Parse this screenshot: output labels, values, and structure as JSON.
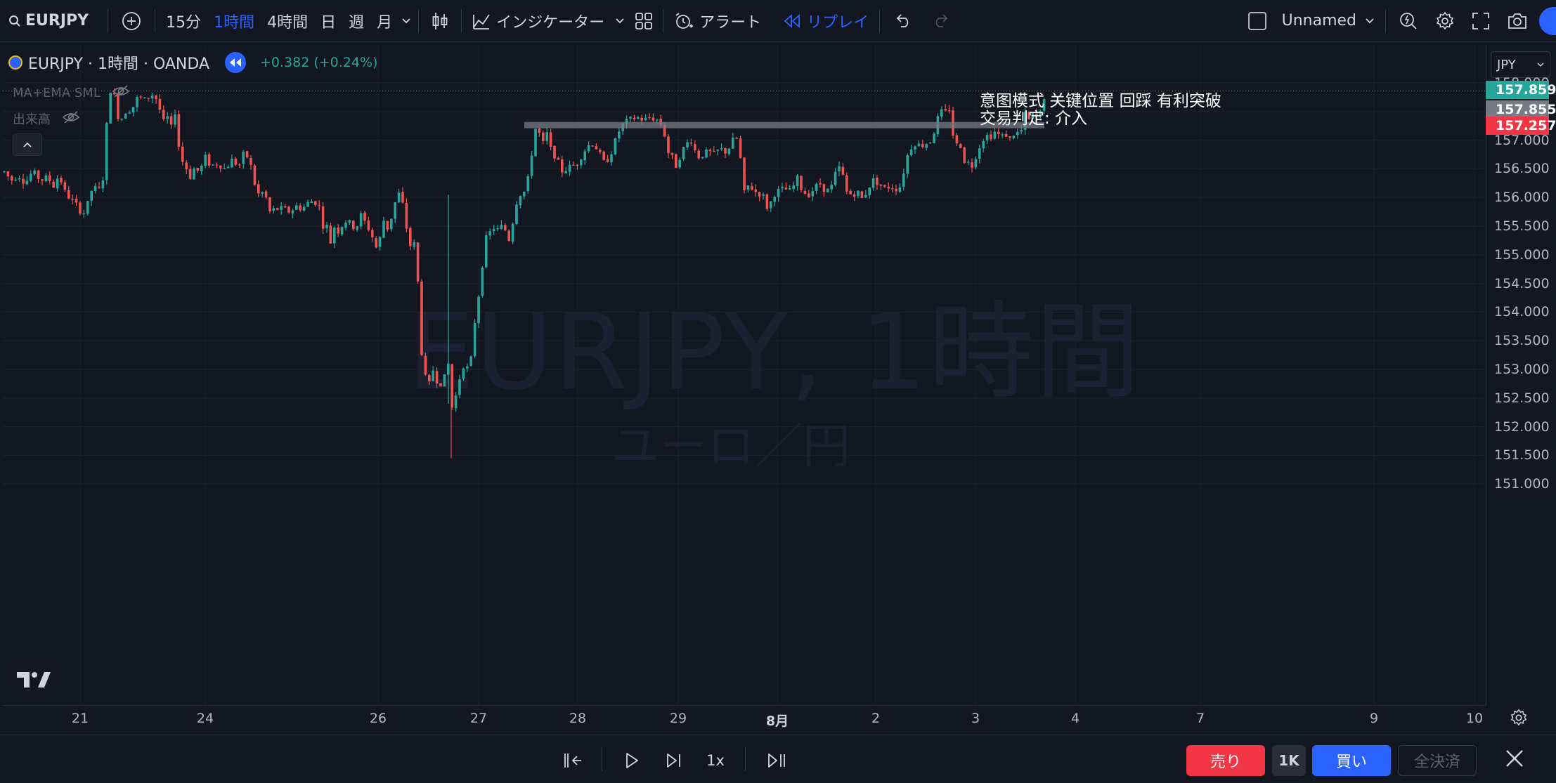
{
  "toolbar": {
    "symbol": "EURJPY",
    "intervals": [
      "15分",
      "1時間",
      "4時間",
      "日",
      "週",
      "月"
    ],
    "active_interval": "1時間",
    "indicators_label": "インジケーター",
    "alert_label": "アラート",
    "replay_label": "リプレイ",
    "layout_name": "Unnamed"
  },
  "legend": {
    "title": "EURJPY · 1時間 · OANDA",
    "change": "+0.382 (+0.24%)",
    "indicator1": "MA+EMA SML",
    "indicator2": "出来高"
  },
  "annotation": {
    "line1": "意图模式 关键位置 回踩 有利突破",
    "line2": "交易判定: 介入"
  },
  "watermark": {
    "main": "EURJPY, 1時間",
    "sub": "ユーロ／円"
  },
  "price_scale": {
    "currency": "JPY",
    "ticks": [
      "158.000",
      "157.500",
      "157.000",
      "156.500",
      "156.000",
      "155.500",
      "155.000",
      "154.500",
      "154.000",
      "153.500",
      "153.000",
      "152.500",
      "152.000",
      "151.500",
      "151.000"
    ],
    "tag_last": "157.859",
    "tag_bid": "157.855",
    "tag_level": "157.257"
  },
  "time_axis": [
    "21",
    "24",
    "26",
    "27",
    "28",
    "29",
    "8月",
    "2",
    "3",
    "4",
    "7",
    "9",
    "10"
  ],
  "replay": {
    "speed": "1x"
  },
  "trade": {
    "sell": "売り",
    "qty": "1K",
    "buy": "買い",
    "flatten": "全決済"
  },
  "colors": {
    "up": "#26a69a",
    "down": "#ef5350",
    "accent": "#2962ff",
    "level_line": "#787b86",
    "background": "#131722"
  },
  "chart_data": {
    "type": "candlestick",
    "symbol": "EURJPY",
    "interval": "1時間",
    "ylim": [
      150.8,
      158.4
    ],
    "key_level": 157.257,
    "last_price": 157.859,
    "path": [
      [
        0,
        156.45
      ],
      [
        10,
        156.3
      ],
      [
        20,
        156.4
      ],
      [
        30,
        156.25
      ],
      [
        40,
        156.45
      ],
      [
        52,
        156.3
      ],
      [
        62,
        156.35
      ],
      [
        70,
        156.2
      ],
      [
        78,
        156.4
      ],
      [
        86,
        156.1
      ],
      [
        96,
        155.95
      ],
      [
        104,
        155.85
      ],
      [
        112,
        155.7
      ],
      [
        118,
        155.85
      ],
      [
        126,
        156.2
      ],
      [
        134,
        156.1
      ],
      [
        142,
        156.4
      ],
      [
        146,
        157.3
      ],
      [
        150,
        157.9
      ],
      [
        156,
        157.8
      ],
      [
        164,
        157.3
      ],
      [
        172,
        157.5
      ],
      [
        182,
        157.55
      ],
      [
        190,
        157.75
      ],
      [
        200,
        157.7
      ],
      [
        210,
        157.8
      ],
      [
        218,
        157.7
      ],
      [
        226,
        157.3
      ],
      [
        232,
        157.4
      ],
      [
        238,
        157.2
      ],
      [
        242,
        157.6
      ],
      [
        246,
        157.2
      ],
      [
        250,
        156.7
      ],
      [
        258,
        156.55
      ],
      [
        264,
        156.35
      ],
      [
        270,
        156.5
      ],
      [
        278,
        156.45
      ],
      [
        286,
        156.7
      ],
      [
        294,
        156.55
      ],
      [
        304,
        156.6
      ],
      [
        314,
        156.5
      ],
      [
        324,
        156.65
      ],
      [
        334,
        156.55
      ],
      [
        342,
        156.8
      ],
      [
        350,
        156.6
      ],
      [
        356,
        156.25
      ],
      [
        362,
        156.05
      ],
      [
        370,
        156.1
      ],
      [
        378,
        155.75
      ],
      [
        386,
        155.8
      ],
      [
        396,
        155.8
      ],
      [
        406,
        155.75
      ],
      [
        416,
        155.85
      ],
      [
        424,
        155.8
      ],
      [
        432,
        155.9
      ],
      [
        440,
        155.95
      ],
      [
        448,
        155.85
      ],
      [
        452,
        155.5
      ],
      [
        458,
        155.55
      ],
      [
        464,
        155.2
      ],
      [
        470,
        155.5
      ],
      [
        476,
        155.4
      ],
      [
        484,
        155.6
      ],
      [
        492,
        155.55
      ],
      [
        500,
        155.45
      ],
      [
        508,
        155.7
      ],
      [
        516,
        155.5
      ],
      [
        522,
        155.4
      ],
      [
        528,
        155.1
      ],
      [
        534,
        155.25
      ],
      [
        540,
        155.6
      ],
      [
        546,
        155.45
      ],
      [
        552,
        155.7
      ],
      [
        558,
        156.0
      ],
      [
        564,
        156.1
      ],
      [
        568,
        155.8
      ],
      [
        574,
        155.35
      ],
      [
        580,
        155.05
      ],
      [
        586,
        155.3
      ],
      [
        592,
        153.5
      ],
      [
        598,
        152.9
      ],
      [
        604,
        152.7
      ],
      [
        610,
        153.0
      ],
      [
        616,
        152.8
      ],
      [
        624,
        152.75
      ],
      [
        632,
        153.1
      ],
      [
        636,
        152.3
      ],
      [
        642,
        152.5
      ],
      [
        648,
        152.85
      ],
      [
        654,
        153.1
      ],
      [
        660,
        153.0
      ],
      [
        664,
        153.15
      ],
      [
        668,
        153.7
      ],
      [
        674,
        154.2
      ],
      [
        680,
        154.8
      ],
      [
        686,
        155.3
      ],
      [
        692,
        155.4
      ],
      [
        698,
        155.5
      ],
      [
        704,
        155.4
      ],
      [
        710,
        155.55
      ],
      [
        716,
        155.3
      ],
      [
        720,
        155.25
      ],
      [
        726,
        155.8
      ],
      [
        732,
        156.05
      ],
      [
        740,
        156.1
      ],
      [
        746,
        156.35
      ],
      [
        752,
        156.9
      ],
      [
        756,
        157.2
      ],
      [
        762,
        157.1
      ],
      [
        768,
        156.9
      ],
      [
        774,
        157.2
      ],
      [
        778,
        156.8
      ],
      [
        786,
        156.7
      ],
      [
        792,
        156.45
      ],
      [
        800,
        156.5
      ],
      [
        808,
        156.55
      ],
      [
        816,
        156.6
      ],
      [
        822,
        156.75
      ],
      [
        830,
        156.9
      ],
      [
        838,
        156.95
      ],
      [
        846,
        156.8
      ],
      [
        852,
        156.6
      ],
      [
        858,
        156.65
      ],
      [
        864,
        156.8
      ],
      [
        870,
        157.0
      ],
      [
        876,
        157.2
      ],
      [
        882,
        157.3
      ],
      [
        890,
        157.35
      ],
      [
        900,
        157.4
      ],
      [
        910,
        157.35
      ],
      [
        920,
        157.4
      ],
      [
        930,
        157.35
      ],
      [
        938,
        157.2
      ],
      [
        944,
        156.8
      ],
      [
        950,
        156.7
      ],
      [
        956,
        156.55
      ],
      [
        964,
        156.8
      ],
      [
        972,
        156.95
      ],
      [
        978,
        157.0
      ],
      [
        986,
        156.7
      ],
      [
        994,
        156.75
      ],
      [
        1002,
        156.8
      ],
      [
        1010,
        156.75
      ],
      [
        1018,
        156.85
      ],
      [
        1026,
        156.8
      ],
      [
        1034,
        156.9
      ],
      [
        1040,
        157.1
      ],
      [
        1046,
        156.9
      ],
      [
        1052,
        156.05
      ],
      [
        1058,
        156.2
      ],
      [
        1066,
        156.15
      ],
      [
        1072,
        156.05
      ],
      [
        1078,
        156.1
      ],
      [
        1084,
        155.85
      ],
      [
        1088,
        155.8
      ],
      [
        1094,
        156.05
      ],
      [
        1100,
        156.1
      ],
      [
        1110,
        156.15
      ],
      [
        1120,
        156.1
      ],
      [
        1128,
        156.35
      ],
      [
        1136,
        156.1
      ],
      [
        1144,
        156.05
      ],
      [
        1152,
        156.15
      ],
      [
        1160,
        156.25
      ],
      [
        1170,
        156.1
      ],
      [
        1178,
        156.2
      ],
      [
        1186,
        156.55
      ],
      [
        1192,
        156.45
      ],
      [
        1198,
        156.1
      ],
      [
        1206,
        156.05
      ],
      [
        1214,
        156.1
      ],
      [
        1222,
        155.95
      ],
      [
        1228,
        156.15
      ],
      [
        1236,
        156.3
      ],
      [
        1244,
        156.25
      ],
      [
        1252,
        156.15
      ],
      [
        1260,
        156.2
      ],
      [
        1268,
        156.15
      ],
      [
        1276,
        156.2
      ],
      [
        1282,
        156.6
      ],
      [
        1288,
        156.85
      ],
      [
        1296,
        156.95
      ],
      [
        1304,
        156.9
      ],
      [
        1312,
        156.95
      ],
      [
        1320,
        157.0
      ],
      [
        1326,
        157.3
      ],
      [
        1332,
        157.5
      ],
      [
        1338,
        157.45
      ],
      [
        1344,
        157.6
      ],
      [
        1348,
        157.2
      ],
      [
        1354,
        156.9
      ],
      [
        1360,
        156.95
      ],
      [
        1366,
        156.65
      ],
      [
        1372,
        156.6
      ],
      [
        1378,
        156.55
      ],
      [
        1384,
        156.8
      ],
      [
        1390,
        156.95
      ],
      [
        1396,
        157.1
      ],
      [
        1402,
        157.05
      ],
      [
        1410,
        157.15
      ],
      [
        1418,
        157.05
      ],
      [
        1426,
        157.1
      ],
      [
        1432,
        157.0
      ],
      [
        1438,
        157.15
      ],
      [
        1446,
        157.1
      ],
      [
        1452,
        157.45
      ],
      [
        1458,
        157.35
      ],
      [
        1464,
        157.45
      ],
      [
        1470,
        157.4
      ],
      [
        1476,
        157.5
      ],
      [
        1481,
        157.86
      ]
    ]
  }
}
